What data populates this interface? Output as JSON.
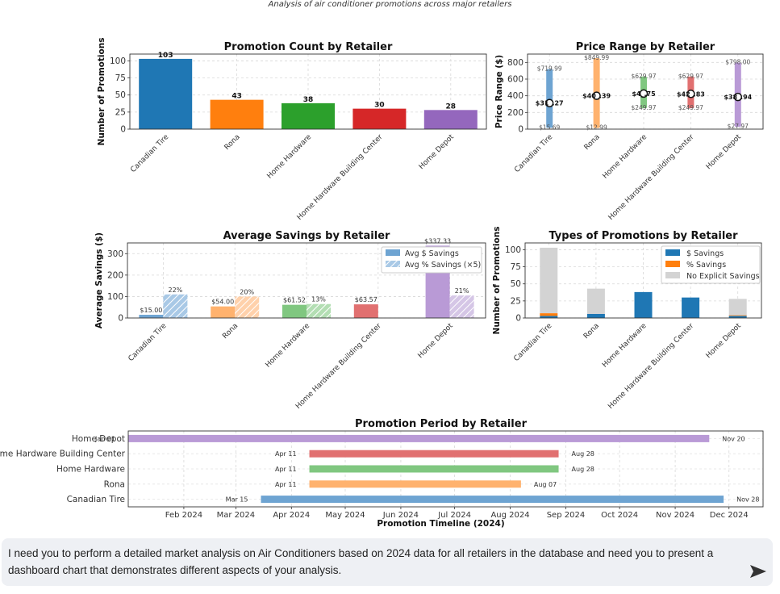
{
  "page": {
    "subtitle": "Analysis of air conditioner promotions across major retailers",
    "prompt_text": "I need you to perform a detailed market analysis on Air Conditioners based on 2024 data for all retailers in the database and need you to present a dashboard chart that demonstrates different aspects of your analysis.",
    "send_icon": "send-arrow-icon"
  },
  "colors": {
    "Canadian Tire": "#1f77b4",
    "Rona": "#ff7f0e",
    "Home Hardware": "#2ca02c",
    "Home Hardware Building Center": "#d62728",
    "Home Depot": "#9467bd",
    "no_savings": "#d3d3d3"
  },
  "chart_data": [
    {
      "id": "promo_count",
      "type": "bar",
      "title": "Promotion Count by Retailer",
      "xlabel": "",
      "ylabel": "Number of Promotions",
      "ylim": [
        0,
        110
      ],
      "yticks": [
        0,
        25,
        50,
        75,
        100
      ],
      "categories": [
        "Canadian Tire",
        "Rona",
        "Home Hardware",
        "Home Hardware Building Center",
        "Home Depot"
      ],
      "values": [
        103,
        43,
        38,
        30,
        28
      ],
      "data_labels": [
        "103",
        "43",
        "38",
        "30",
        "28"
      ],
      "grid": true
    },
    {
      "id": "price_range",
      "type": "range",
      "title": "Price Range by Retailer",
      "xlabel": "",
      "ylabel": "Price Range ($)",
      "ylim": [
        0,
        900
      ],
      "yticks": [
        0,
        200,
        400,
        600,
        800
      ],
      "categories": [
        "Canadian Tire",
        "Rona",
        "Home Hardware",
        "Home Hardware Building Center",
        "Home Depot"
      ],
      "min": [
        15.69,
        12.99,
        249.97,
        249.97,
        27.97
      ],
      "max": [
        719.99,
        849.99,
        629.97,
        629.97,
        798.0
      ],
      "avg": [
        312.27,
        400.39,
        426.75,
        422.83,
        385.94
      ],
      "min_labels": [
        "$15.69",
        "$12.99",
        "$249.97",
        "$249.97",
        "$27.97"
      ],
      "max_labels": [
        "$719.99",
        "$849.99",
        "$629.97",
        "$629.97",
        "$798.00"
      ],
      "avg_labels": [
        "$31_.27",
        "$40_.39",
        "$4_.75",
        "$42_.83",
        "$38_.94"
      ],
      "grid": true
    },
    {
      "id": "avg_savings",
      "type": "bar",
      "title": "Average Savings by Retailer",
      "xlabel": "",
      "ylabel": "Average Savings ($)",
      "ylim": [
        0,
        350
      ],
      "yticks": [
        0,
        100,
        200,
        300
      ],
      "categories": [
        "Canadian Tire",
        "Rona",
        "Home Hardware",
        "Home Hardware Building Center",
        "Home Depot"
      ],
      "series": [
        {
          "name": "Avg $ Savings",
          "values": [
            15.0,
            54.0,
            61.52,
            63.57,
            337.33
          ],
          "labels": [
            "$15.00",
            "$54.00",
            "$61.52",
            "$63.57",
            "$337.33"
          ]
        },
        {
          "name": "Avg % Savings (×5)",
          "values": [
            110,
            100,
            65,
            null,
            105
          ],
          "labels": [
            "22%",
            "20%",
            "13%",
            "",
            "21%"
          ]
        }
      ],
      "legend": "top-right",
      "grid": true
    },
    {
      "id": "promo_types",
      "type": "bar",
      "stacked": true,
      "title": "Types of Promotions by Retailer",
      "xlabel": "",
      "ylabel": "Number of Promotions",
      "ylim": [
        0,
        110
      ],
      "yticks": [
        0,
        25,
        50,
        75,
        100
      ],
      "categories": [
        "Canadian Tire",
        "Rona",
        "Home Hardware",
        "Home Hardware Building Center",
        "Home Depot"
      ],
      "series": [
        {
          "name": "$ Savings",
          "values": [
            3,
            6,
            38,
            30,
            3
          ]
        },
        {
          "name": "% Savings",
          "values": [
            4,
            0,
            0,
            0,
            1
          ]
        },
        {
          "name": "No Explicit Savings",
          "values": [
            96,
            37,
            0,
            0,
            24
          ]
        }
      ],
      "legend": "top-right",
      "grid": true
    },
    {
      "id": "promo_period",
      "type": "gantt",
      "title": "Promotion Period by Retailer",
      "xlabel": "Promotion Timeline (2024)",
      "ylabel": "",
      "xlim": [
        "2024-01-01",
        "2024-12-20"
      ],
      "xticks": [
        {
          "label": "Feb 2024",
          "date": "2024-02-01"
        },
        {
          "label": "Mar 2024",
          "date": "2024-03-01"
        },
        {
          "label": "Apr 2024",
          "date": "2024-04-01"
        },
        {
          "label": "May 2024",
          "date": "2024-05-01"
        },
        {
          "label": "Jun 2024",
          "date": "2024-06-01"
        },
        {
          "label": "Jul 2024",
          "date": "2024-07-01"
        },
        {
          "label": "Aug 2024",
          "date": "2024-08-01"
        },
        {
          "label": "Sep 2024",
          "date": "2024-09-01"
        },
        {
          "label": "Oct 2024",
          "date": "2024-10-01"
        },
        {
          "label": "Nov 2024",
          "date": "2024-11-01"
        },
        {
          "label": "Dec 2024",
          "date": "2024-12-01"
        }
      ],
      "rows": [
        {
          "retailer": "Home Depot",
          "start": "2024-01-01",
          "end": "2024-11-20",
          "start_label": "Jan 01",
          "end_label": "Nov 20"
        },
        {
          "retailer": "Home Hardware Building Center",
          "start": "2024-04-11",
          "end": "2024-08-28",
          "start_label": "Apr 11",
          "end_label": "Aug 28"
        },
        {
          "retailer": "Home Hardware",
          "start": "2024-04-11",
          "end": "2024-08-28",
          "start_label": "Apr 11",
          "end_label": "Aug 28"
        },
        {
          "retailer": "Rona",
          "start": "2024-04-11",
          "end": "2024-08-07",
          "start_label": "Apr 11",
          "end_label": "Aug 07"
        },
        {
          "retailer": "Canadian Tire",
          "start": "2024-03-15",
          "end": "2024-11-28",
          "start_label": "Mar 15",
          "end_label": "Nov 28"
        }
      ],
      "grid": true
    }
  ]
}
